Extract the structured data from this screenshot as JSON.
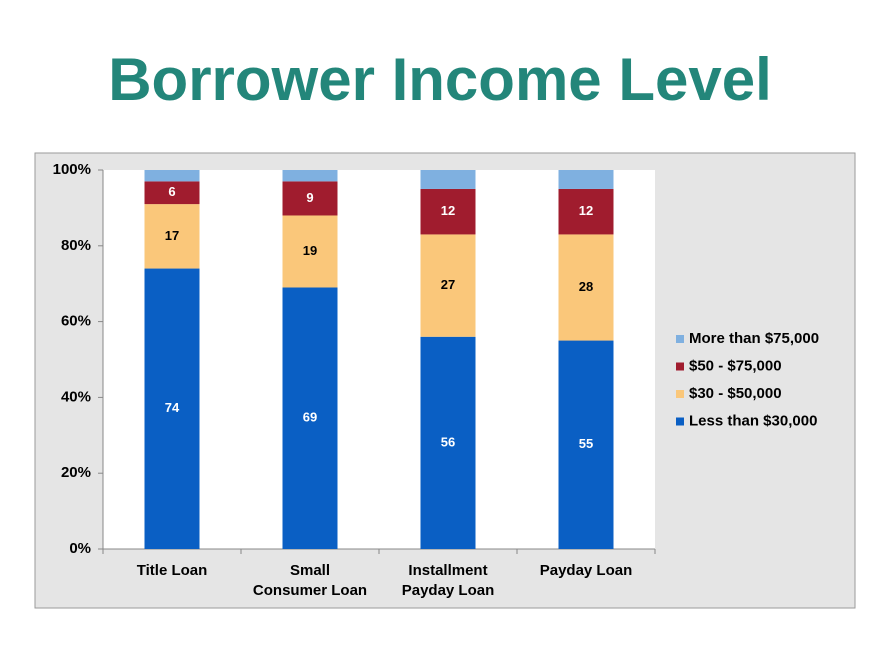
{
  "chart_data": {
    "type": "stacked_bar",
    "title": "Borrower Income Level",
    "categories": [
      "Title Loan",
      "Small\nConsumer Loan",
      "Installment\nPayday Loan",
      "Payday Loan"
    ],
    "series": [
      {
        "name": "Less than $30,000",
        "color": "#0a5fc4",
        "values": [
          74,
          69,
          56,
          55
        ],
        "data_labels": true
      },
      {
        "name": "$30 - $50,000",
        "color": "#fac77a",
        "values": [
          17,
          19,
          27,
          28
        ],
        "data_labels": true
      },
      {
        "name": "$50 - $75,000",
        "color": "#a01c2e",
        "values": [
          6,
          9,
          12,
          12
        ],
        "data_labels": true
      },
      {
        "name": "More than $75,000",
        "color": "#7fb0e0",
        "values": [
          3,
          3,
          5,
          5
        ],
        "data_labels": false
      }
    ],
    "ylim": [
      0,
      100
    ],
    "yticks": [
      {
        "value": 0,
        "label": "0%"
      },
      {
        "value": 20,
        "label": "20%"
      },
      {
        "value": 40,
        "label": "40%"
      },
      {
        "value": 60,
        "label": "60%"
      },
      {
        "value": 80,
        "label": "80%"
      },
      {
        "value": 100,
        "label": "100%"
      }
    ],
    "legend": "right"
  }
}
